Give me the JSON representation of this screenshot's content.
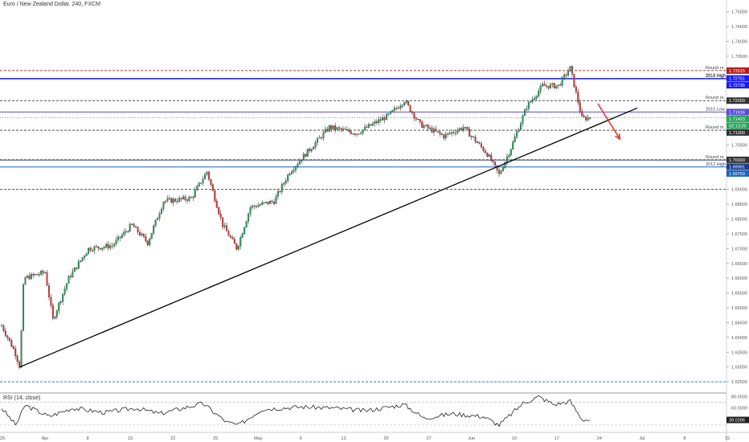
{
  "chart_data": {
    "type": "candlestick",
    "title": "Euro / New Zealand Dollar, 240, FXCM",
    "ylim": [
      1.6215,
      1.754
    ],
    "y_ticks": [
      1.75,
      1.745,
      1.74,
      1.735,
      1.73,
      1.725,
      1.72,
      1.715,
      1.71,
      1.705,
      1.7,
      1.695,
      1.69,
      1.685,
      1.68,
      1.675,
      1.67,
      1.665,
      1.66,
      1.655,
      1.65,
      1.645,
      1.64,
      1.635,
      1.63,
      1.625
    ],
    "x_ticks": [
      "25",
      "Apr",
      "8",
      "15",
      "22",
      "25",
      "May",
      "6",
      "13",
      "20",
      "27",
      "Jun",
      "10",
      "17",
      "24",
      "Jul",
      "8",
      "15"
    ],
    "price_path": [
      {
        "t": 0,
        "price": 1.644
      },
      {
        "t": 1.7,
        "price": 1.635
      },
      {
        "t": 2.3,
        "price": 1.63
      },
      {
        "t": 2.8,
        "price": 1.66
      },
      {
        "t": 5.5,
        "price": 1.662
      },
      {
        "t": 6.5,
        "price": 1.646
      },
      {
        "t": 8.5,
        "price": 1.66
      },
      {
        "t": 11,
        "price": 1.67
      },
      {
        "t": 14,
        "price": 1.671
      },
      {
        "t": 16.5,
        "price": 1.678
      },
      {
        "t": 18.5,
        "price": 1.672
      },
      {
        "t": 20.5,
        "price": 1.686
      },
      {
        "t": 24,
        "price": 1.687
      },
      {
        "t": 26,
        "price": 1.696
      },
      {
        "t": 28,
        "price": 1.678
      },
      {
        "t": 29.8,
        "price": 1.67
      },
      {
        "t": 31.5,
        "price": 1.684
      },
      {
        "t": 34.5,
        "price": 1.686
      },
      {
        "t": 36.5,
        "price": 1.696
      },
      {
        "t": 38.5,
        "price": 1.702
      },
      {
        "t": 41.5,
        "price": 1.711
      },
      {
        "t": 45,
        "price": 1.709
      },
      {
        "t": 49,
        "price": 1.715
      },
      {
        "t": 51,
        "price": 1.72
      },
      {
        "t": 53,
        "price": 1.712
      },
      {
        "t": 56,
        "price": 1.708
      },
      {
        "t": 58.5,
        "price": 1.711
      },
      {
        "t": 61.5,
        "price": 1.702
      },
      {
        "t": 63,
        "price": 1.695
      },
      {
        "t": 64.5,
        "price": 1.704
      },
      {
        "t": 66.5,
        "price": 1.718
      },
      {
        "t": 68.5,
        "price": 1.725
      },
      {
        "t": 70.5,
        "price": 1.725
      },
      {
        "t": 72,
        "price": 1.731
      },
      {
        "t": 73.5,
        "price": 1.714
      },
      {
        "t": 74.5,
        "price": 1.7142
      }
    ],
    "rsi_path": [
      {
        "t": 0,
        "value": 60
      },
      {
        "t": 1.8,
        "value": 30
      },
      {
        "t": 3,
        "value": 65
      },
      {
        "t": 6,
        "value": 45
      },
      {
        "t": 9,
        "value": 60
      },
      {
        "t": 13,
        "value": 52
      },
      {
        "t": 17,
        "value": 60
      },
      {
        "t": 20,
        "value": 50
      },
      {
        "t": 25.5,
        "value": 68
      },
      {
        "t": 28.5,
        "value": 35
      },
      {
        "t": 30,
        "value": 30
      },
      {
        "t": 33,
        "value": 58
      },
      {
        "t": 38,
        "value": 62
      },
      {
        "t": 42,
        "value": 60
      },
      {
        "t": 46,
        "value": 55
      },
      {
        "t": 51,
        "value": 66
      },
      {
        "t": 53.5,
        "value": 42
      },
      {
        "t": 57,
        "value": 50
      },
      {
        "t": 61,
        "value": 45
      },
      {
        "t": 63,
        "value": 30
      },
      {
        "t": 66,
        "value": 68
      },
      {
        "t": 68,
        "value": 80
      },
      {
        "t": 70,
        "value": 66
      },
      {
        "t": 72,
        "value": 72
      },
      {
        "t": 73.5,
        "value": 40
      },
      {
        "t": 74.5,
        "value": 39.03
      }
    ],
    "trendline": {
      "start": {
        "t": 2.3,
        "price": 1.63
      },
      "end": {
        "t": 80.5,
        "price": 1.7175
      }
    },
    "arrow": {
      "start": {
        "t": 75.5,
        "price": 1.719
      },
      "end": {
        "t": 78.3,
        "price": 1.707
      },
      "color": "#e53935"
    },
    "levels": [
      {
        "price": 1.73015,
        "label": "Round nr.",
        "badge": "1.73015",
        "color": "#b71c1c",
        "dash": true
      },
      {
        "price": 1.72751,
        "label": "2013 High",
        "badge": "1.72751",
        "color": "#1a1aff",
        "dash": false
      },
      {
        "price": 1.72735,
        "label": "2016 High",
        "badge": "1.72735",
        "color": "#1a1aff",
        "dash": false
      },
      {
        "price": 1.72,
        "label": "Round nr.",
        "badge": "1.72000",
        "color": "#333333",
        "dash": true
      },
      {
        "price": 1.71616,
        "label": "2010 Low",
        "badge": "1.71616",
        "color": "#5b4bd6",
        "dash": false
      },
      {
        "price": 1.71,
        "label": "Round nr.",
        "badge": "1.71000",
        "color": "#333333",
        "dash": true
      },
      {
        "price": 1.69991,
        "label": "Round nr.",
        "badge": "1.69991",
        "color": "#1e3a8a",
        "dash": false
      },
      {
        "price": 1.7,
        "label": "",
        "badge": "1.70000",
        "color": "#333333",
        "dash": true
      },
      {
        "price": 1.69759,
        "label": "2012 High",
        "badge": "1.69759",
        "color": "#1565c0",
        "dash": false
      },
      {
        "price": 1.69,
        "label": "",
        "badge": "",
        "color": "#333333",
        "dash": true
      },
      {
        "price": 1.625,
        "label": "",
        "badge": "",
        "color": "#1565c0",
        "dash": true
      }
    ],
    "current_price": {
      "price": 1.71423,
      "badge": "1.71423",
      "countdown": "02:13:29",
      "color": "#26a65b"
    },
    "rsi": {
      "label": "RSI (14, close)",
      "ticks": [
        "80.0000",
        "60.0000"
      ],
      "levels": [
        70,
        30
      ],
      "last": "39.0296",
      "ylim": [
        20,
        85
      ]
    }
  }
}
